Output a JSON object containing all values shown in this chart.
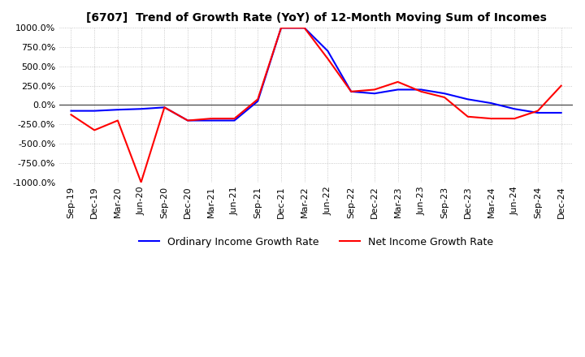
{
  "title": "[6707]  Trend of Growth Rate (YoY) of 12-Month Moving Sum of Incomes",
  "ylim": [
    -1000,
    1000
  ],
  "yticks": [
    1000,
    750,
    500,
    250,
    0,
    -250,
    -500,
    -750,
    -1000
  ],
  "background_color": "#ffffff",
  "grid_color": "#bbbbbb",
  "ordinary_income_color": "#0000ff",
  "net_income_color": "#ff0000",
  "legend_ordinary": "Ordinary Income Growth Rate",
  "legend_net": "Net Income Growth Rate",
  "x_labels": [
    "Sep-19",
    "Dec-19",
    "Mar-20",
    "Jun-20",
    "Sep-20",
    "Dec-20",
    "Mar-21",
    "Jun-21",
    "Sep-21",
    "Dec-21",
    "Mar-22",
    "Jun-22",
    "Sep-22",
    "Dec-22",
    "Mar-23",
    "Jun-23",
    "Sep-23",
    "Dec-23",
    "Mar-24",
    "Jun-24",
    "Sep-24",
    "Dec-24"
  ],
  "ordinary_income": [
    -75,
    -75,
    -60,
    -50,
    -30,
    -200,
    -200,
    -200,
    50,
    1000,
    1000,
    700,
    175,
    150,
    200,
    200,
    150,
    75,
    25,
    -50,
    -100,
    -100
  ],
  "net_income": [
    -125,
    -325,
    -200,
    -1000,
    -30,
    -200,
    -175,
    -175,
    75,
    1000,
    1000,
    600,
    175,
    200,
    300,
    175,
    100,
    -150,
    -175,
    -175,
    -75,
    250
  ]
}
